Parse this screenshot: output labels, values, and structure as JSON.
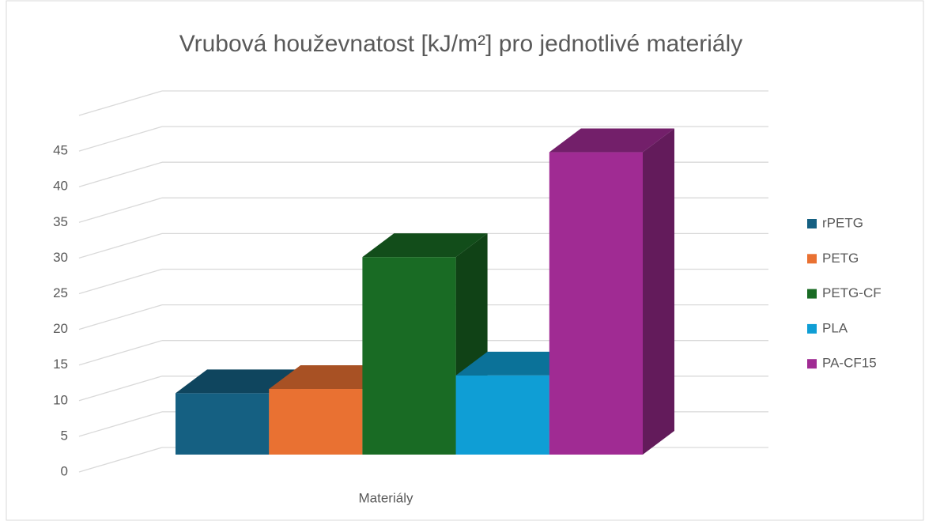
{
  "chart_data": {
    "type": "bar3d",
    "title": "Vrubová houževnatost [kJ/m²] pro jednotlivé materiály",
    "x_label": "Materiály",
    "categories": [
      "Materiály"
    ],
    "series": [
      {
        "name": "rPETG",
        "color": "#156082",
        "values": [
          8.6
        ]
      },
      {
        "name": "PETG",
        "color": "#e97132",
        "values": [
          9.2
        ]
      },
      {
        "name": "PETG-CF",
        "color": "#196b24",
        "values": [
          27.7
        ]
      },
      {
        "name": "PLA",
        "color": "#0f9ed5",
        "values": [
          11.1
        ]
      },
      {
        "name": "PA-CF15",
        "color": "#a02b93",
        "values": [
          42.4
        ]
      }
    ],
    "ylim": [
      0,
      50
    ],
    "yticks": [
      0,
      5,
      10,
      15,
      20,
      25,
      30,
      35,
      40,
      45
    ],
    "grid": true,
    "legend": "right"
  }
}
